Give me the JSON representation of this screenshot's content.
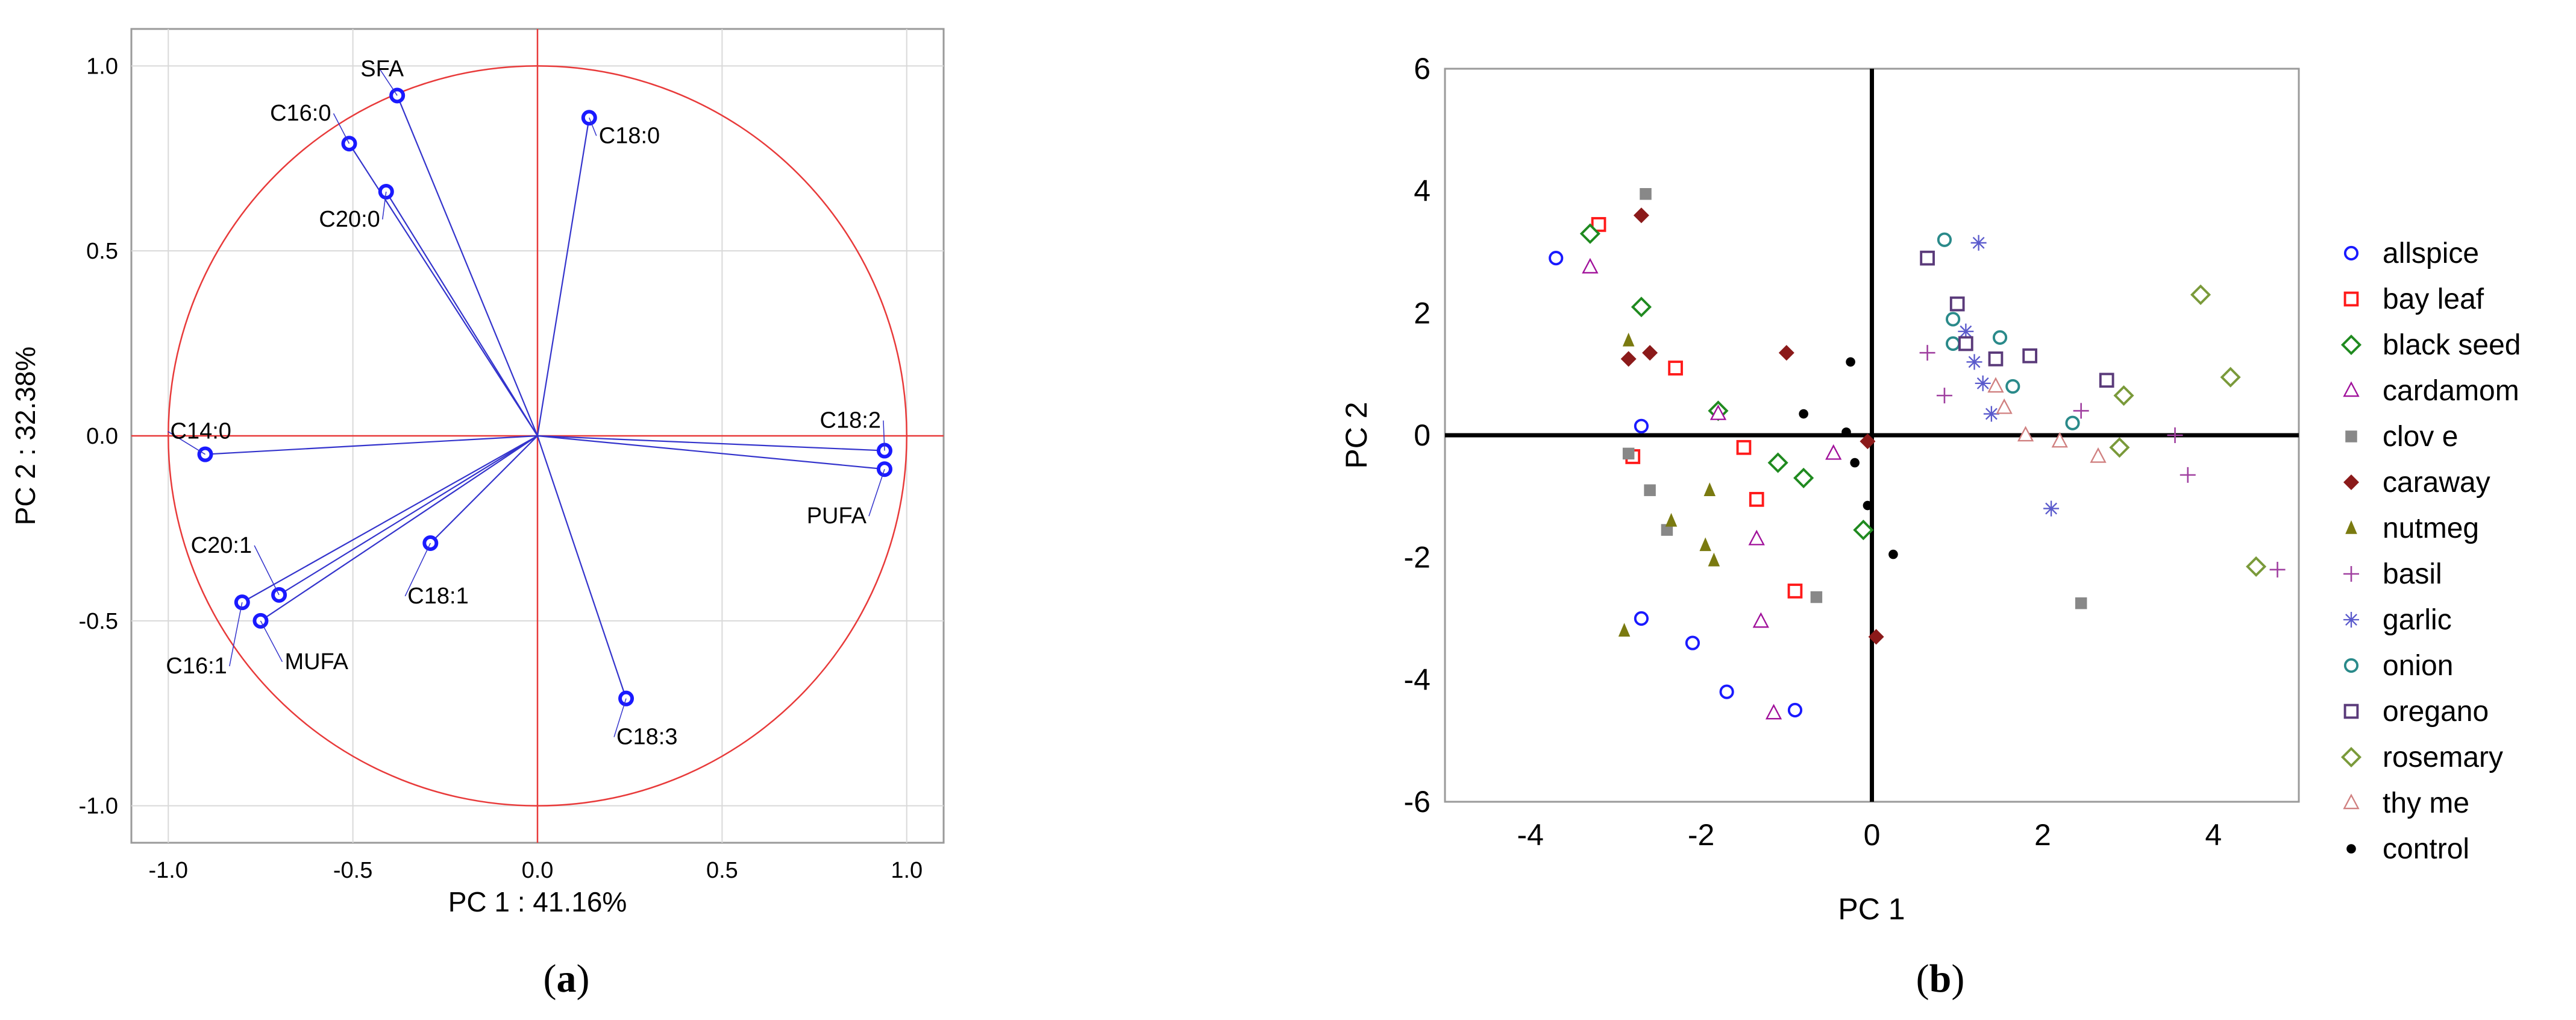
{
  "chart_data": [
    {
      "type": "scatter",
      "subtype": "pca-loadings-vector",
      "panel_label": "(a)",
      "panel_letter": "a",
      "xlabel": "PC 1 : 41.16%",
      "ylabel": "PC 2 :  32.38%",
      "xlim": [
        -1.1,
        1.1
      ],
      "ylim": [
        -1.1,
        1.1
      ],
      "xticks": [
        -1.0,
        -0.5,
        0.0,
        0.5,
        1.0
      ],
      "yticks": [
        -1.0,
        -0.5,
        0.0,
        0.5,
        1.0
      ],
      "xtick_labels": [
        "-1.0",
        "-0.5",
        "0.0",
        "0.5",
        "1.0"
      ],
      "ytick_labels": [
        "-1.0",
        "-0.5",
        "0.0",
        "0.5",
        "1.0"
      ],
      "grid": true,
      "unit_circle": true,
      "colors": {
        "vector": "#3333cc",
        "marker": "#1a1aff",
        "circle": "#e83a3a",
        "grid": "#d9d9d9"
      },
      "points": [
        {
          "label": "SFA",
          "x": -0.38,
          "y": 0.92
        },
        {
          "label": "C16:0",
          "x": -0.51,
          "y": 0.79
        },
        {
          "label": "C20:0",
          "x": -0.41,
          "y": 0.66
        },
        {
          "label": "C18:0",
          "x": 0.14,
          "y": 0.86
        },
        {
          "label": "C14:0",
          "x": -0.9,
          "y": -0.05
        },
        {
          "label": "C18:2",
          "x": 0.94,
          "y": -0.04
        },
        {
          "label": "PUFA",
          "x": 0.94,
          "y": -0.09
        },
        {
          "label": "C20:1",
          "x": -0.7,
          "y": -0.43
        },
        {
          "label": "C16:1",
          "x": -0.8,
          "y": -0.45
        },
        {
          "label": "MUFA",
          "x": -0.75,
          "y": -0.5
        },
        {
          "label": "C18:1",
          "x": -0.29,
          "y": -0.29
        },
        {
          "label": "C18:3",
          "x": 0.24,
          "y": -0.71
        }
      ]
    },
    {
      "type": "scatter",
      "subtype": "pca-scores",
      "panel_label": "(b)",
      "panel_letter": "b",
      "xlabel": "PC 1",
      "ylabel": "PC 2",
      "xlim": [
        -5,
        5
      ],
      "ylim": [
        -6,
        6
      ],
      "xticks": [
        -4,
        -2,
        0,
        2,
        4
      ],
      "yticks": [
        -6,
        -4,
        -2,
        0,
        2,
        4,
        6
      ],
      "xtick_labels": [
        "-4",
        "-2",
        "0",
        "2",
        "4"
      ],
      "ytick_labels": [
        "-6",
        "-4",
        "-2",
        "0",
        "2",
        "4",
        "6"
      ],
      "grid": false,
      "legend": "right",
      "series": [
        {
          "name": "allspice",
          "marker": "circle",
          "color": "#1a1aff",
          "points": [
            [
              -3.7,
              2.9
            ],
            [
              -2.7,
              0.15
            ],
            [
              -2.7,
              -3.0
            ],
            [
              -2.1,
              -3.4
            ],
            [
              -1.7,
              -4.2
            ],
            [
              -0.9,
              -4.5
            ]
          ]
        },
        {
          "name": "bay leaf",
          "marker": "square",
          "color": "#ff1a1a",
          "points": [
            [
              -3.2,
              3.45
            ],
            [
              -2.3,
              1.1
            ],
            [
              -2.8,
              -0.35
            ],
            [
              -1.5,
              -0.2
            ],
            [
              -1.35,
              -1.05
            ],
            [
              -0.9,
              -2.55
            ]
          ]
        },
        {
          "name": "black seed",
          "marker": "diamond",
          "color": "#1f8a1f",
          "points": [
            [
              -3.3,
              3.3
            ],
            [
              -2.7,
              2.1
            ],
            [
              -1.8,
              0.4
            ],
            [
              -1.1,
              -0.45
            ],
            [
              -0.8,
              -0.7
            ],
            [
              -0.1,
              -1.55
            ]
          ]
        },
        {
          "name": "cardamom",
          "marker": "triangle",
          "color": "#a0109a",
          "points": [
            [
              -3.3,
              2.75
            ],
            [
              -1.8,
              0.35
            ],
            [
              -1.35,
              -1.7
            ],
            [
              -1.3,
              -3.05
            ],
            [
              -1.15,
              -4.55
            ],
            [
              -0.45,
              -0.3
            ]
          ]
        },
        {
          "name": "clov e",
          "marker": "square-filled",
          "color": "#888888",
          "points": [
            [
              -2.65,
              3.95
            ],
            [
              -2.85,
              -0.3
            ],
            [
              -2.6,
              -0.9
            ],
            [
              -2.4,
              -1.55
            ],
            [
              -0.65,
              -2.65
            ],
            [
              2.45,
              -2.75
            ]
          ]
        },
        {
          "name": "caraway",
          "marker": "diamond-filled",
          "color": "#8b1a1a",
          "points": [
            [
              -2.7,
              3.6
            ],
            [
              -2.85,
              1.25
            ],
            [
              -2.6,
              1.35
            ],
            [
              -1.0,
              1.35
            ],
            [
              -0.05,
              -0.1
            ],
            [
              0.05,
              -3.3
            ]
          ]
        },
        {
          "name": "nutmeg",
          "marker": "triangle-filled",
          "color": "#7a7a10",
          "points": [
            [
              -2.85,
              1.55
            ],
            [
              -2.9,
              -3.2
            ],
            [
              -2.35,
              -1.4
            ],
            [
              -1.9,
              -0.9
            ],
            [
              -1.95,
              -1.8
            ],
            [
              -1.85,
              -2.05
            ]
          ]
        },
        {
          "name": "basil",
          "marker": "plus",
          "color": "#a040a0",
          "points": [
            [
              0.65,
              1.35
            ],
            [
              0.85,
              0.65
            ],
            [
              2.45,
              0.4
            ],
            [
              3.55,
              0.0
            ],
            [
              3.7,
              -0.65
            ],
            [
              4.75,
              -2.2
            ]
          ]
        },
        {
          "name": "garlic",
          "marker": "asterisk",
          "color": "#5a5acc",
          "points": [
            [
              1.25,
              3.15
            ],
            [
              1.1,
              1.7
            ],
            [
              1.2,
              1.2
            ],
            [
              1.3,
              0.85
            ],
            [
              1.4,
              0.35
            ],
            [
              2.1,
              -1.2
            ]
          ]
        },
        {
          "name": "onion",
          "marker": "circle",
          "color": "#2a8a8a",
          "points": [
            [
              0.85,
              3.2
            ],
            [
              0.95,
              1.9
            ],
            [
              0.95,
              1.5
            ],
            [
              1.5,
              1.6
            ],
            [
              1.65,
              0.8
            ],
            [
              2.35,
              0.2
            ]
          ]
        },
        {
          "name": "oregano",
          "marker": "square",
          "color": "#5a3a7a",
          "points": [
            [
              0.65,
              2.9
            ],
            [
              1.0,
              2.15
            ],
            [
              1.1,
              1.5
            ],
            [
              1.45,
              1.25
            ],
            [
              1.85,
              1.3
            ],
            [
              2.75,
              0.9
            ]
          ]
        },
        {
          "name": "rosemary",
          "marker": "diamond",
          "color": "#7a9a3a",
          "points": [
            [
              3.85,
              2.3
            ],
            [
              4.2,
              0.95
            ],
            [
              2.95,
              0.65
            ],
            [
              2.9,
              -0.2
            ],
            [
              4.5,
              -2.15
            ]
          ]
        },
        {
          "name": "thy me",
          "marker": "triangle",
          "color": "#d08080",
          "points": [
            [
              1.45,
              0.8
            ],
            [
              1.55,
              0.45
            ],
            [
              1.8,
              0.0
            ],
            [
              2.2,
              -0.1
            ],
            [
              2.65,
              -0.35
            ]
          ]
        },
        {
          "name": "control",
          "marker": "dot",
          "color": "#000000",
          "points": [
            [
              -0.8,
              0.35
            ],
            [
              -0.25,
              1.2
            ],
            [
              -0.3,
              0.05
            ],
            [
              -0.2,
              -0.45
            ],
            [
              -0.05,
              -1.15
            ],
            [
              0.25,
              -1.95
            ]
          ]
        }
      ]
    }
  ]
}
